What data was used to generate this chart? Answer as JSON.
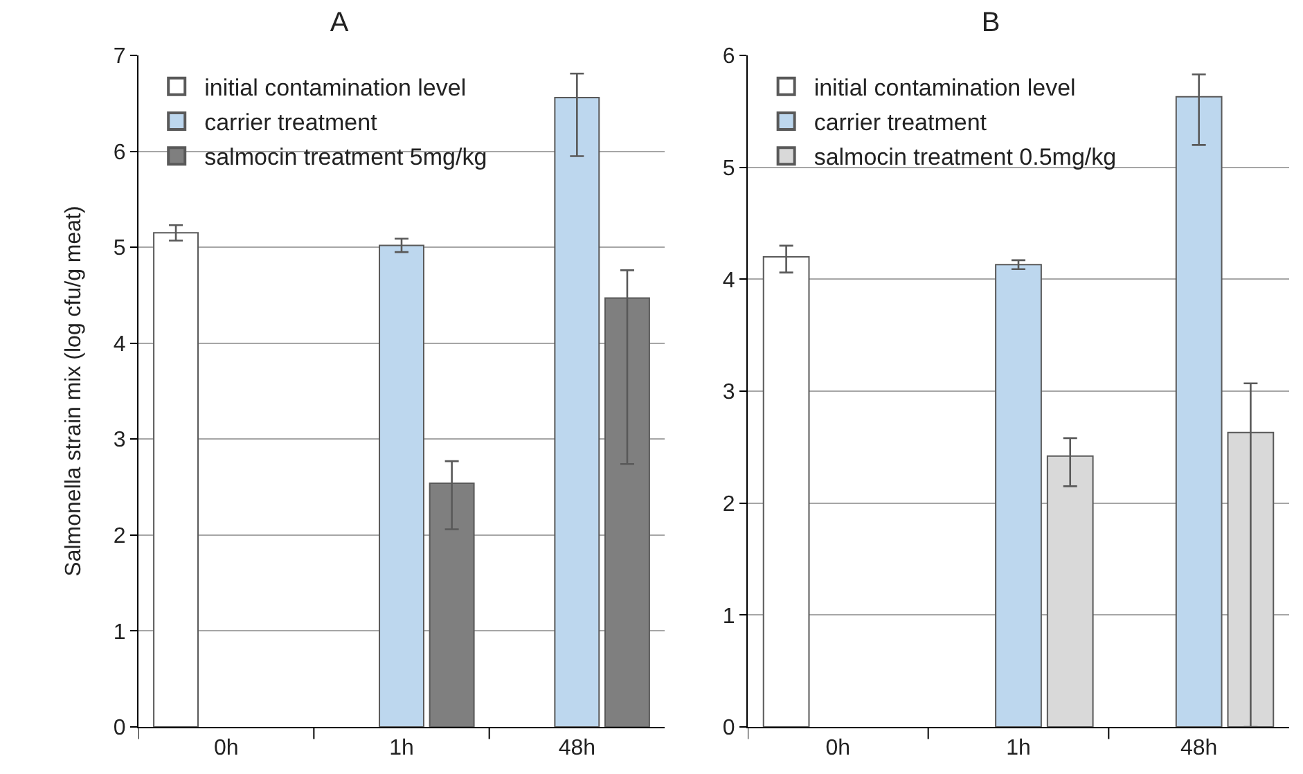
{
  "chart_data": [
    {
      "type": "bar",
      "title": "A",
      "ylabel": "Salmonella strain mix (log cfu/g meat)",
      "categories": [
        "0h",
        "1h",
        "48h"
      ],
      "series": [
        {
          "name": "initial contamination level",
          "color": "#ffffff",
          "values": [
            5.15,
            null,
            null
          ],
          "errors": [
            [
              5.07,
              5.23
            ],
            null,
            null
          ]
        },
        {
          "name": "carrier treatment",
          "color": "#bdd7ee",
          "values": [
            null,
            5.02,
            6.56
          ],
          "errors": [
            null,
            [
              4.95,
              5.09
            ],
            [
              5.95,
              6.81
            ]
          ]
        },
        {
          "name": "salmocin treatment 5mg/kg",
          "color": "#7f7f7f",
          "values": [
            null,
            2.54,
            4.47
          ],
          "errors": [
            null,
            [
              2.06,
              2.77
            ],
            [
              2.74,
              4.76
            ]
          ]
        }
      ],
      "ylim": [
        0,
        7
      ],
      "yticks": [
        0,
        1,
        2,
        3,
        4,
        5,
        6,
        7
      ],
      "grid": "y",
      "legend": "top left"
    },
    {
      "type": "bar",
      "title": "B",
      "categories": [
        "0h",
        "1h",
        "48h"
      ],
      "series": [
        {
          "name": "initial contamination level",
          "color": "#ffffff",
          "values": [
            4.2,
            null,
            null
          ],
          "errors": [
            [
              4.06,
              4.3
            ],
            null,
            null
          ]
        },
        {
          "name": "carrier treatment",
          "color": "#bdd7ee",
          "values": [
            null,
            4.13,
            5.63
          ],
          "errors": [
            null,
            [
              4.09,
              4.17
            ],
            [
              5.2,
              5.83
            ]
          ]
        },
        {
          "name": "salmocin treatment 0.5mg/kg",
          "color": "#d9d9d9",
          "values": [
            null,
            2.42,
            2.63
          ],
          "errors": [
            null,
            [
              2.15,
              2.58
            ],
            [
              0,
              3.07
            ]
          ]
        }
      ],
      "ylim": [
        0,
        6
      ],
      "yticks": [
        0,
        1,
        2,
        3,
        4,
        5,
        6
      ],
      "grid": "y",
      "legend": "top left"
    }
  ]
}
